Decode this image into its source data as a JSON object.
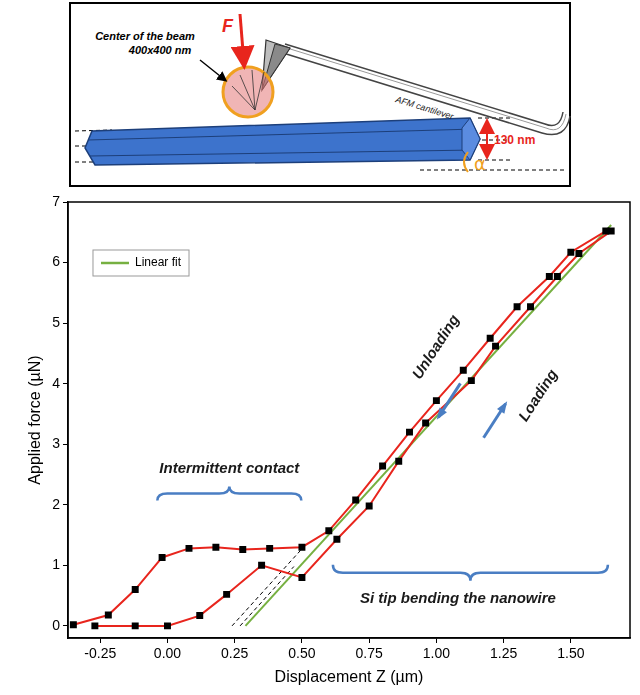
{
  "chart_data": {
    "type": "scatter",
    "x_label": "Displacement Z (µm)",
    "y_label": "Applied force (µN)",
    "xlim": [
      -0.37,
      1.72
    ],
    "xticks": [
      -0.25,
      {
        "value": 0,
        "label": "0.00"
      },
      0.25,
      {
        "value": 0.5,
        "label": "0.50"
      },
      0.75,
      {
        "value": 1,
        "label": "1.00"
      },
      1.25,
      {
        "value": 1.5,
        "label": "1.50"
      }
    ],
    "ylim": [
      -0.2,
      7
    ],
    "yticks": [
      0,
      1,
      2,
      3,
      4,
      5,
      6,
      7
    ],
    "grid": false,
    "legend": "upper left",
    "series": [
      {
        "color": "#e8251d",
        "marker": "square",
        "line_style": "solid",
        "x": [
          -0.35,
          -0.22,
          -0.12,
          -0.02,
          0.08,
          0.18,
          0.28,
          0.38,
          0.5,
          0.6,
          0.7,
          0.8,
          0.9,
          1.0,
          1.1,
          1.2,
          1.3,
          1.42,
          1.5,
          1.63
        ],
        "values": [
          0.02,
          0.18,
          0.6,
          1.13,
          1.28,
          1.3,
          1.26,
          1.28,
          1.3,
          1.57,
          2.08,
          2.64,
          3.2,
          3.72,
          4.22,
          4.75,
          5.27,
          5.77,
          6.17,
          6.52
        ]
      },
      {
        "color": "#e8251d",
        "marker": "square",
        "line_style": "solid",
        "x": [
          -0.27,
          -0.12,
          0.0,
          0.12,
          0.22,
          0.35,
          0.5,
          0.63,
          0.75,
          0.86,
          0.96,
          1.13,
          1.22,
          1.35,
          1.45,
          1.53,
          1.65
        ],
        "values": [
          0.0,
          0.0,
          0.0,
          0.17,
          0.52,
          1.0,
          0.8,
          1.43,
          1.98,
          2.72,
          3.35,
          4.05,
          4.62,
          5.27,
          5.77,
          6.15,
          6.52
        ]
      },
      {
        "name": "Linear fit",
        "color": "#76b041",
        "marker": "none",
        "line_style": "solid",
        "x": [
          0.29,
          1.65
        ],
        "values": [
          0,
          6.62
        ]
      },
      {
        "color": "#000000",
        "marker": "none",
        "line_style": "dashed",
        "x": [
          0.24,
          0.52
        ],
        "values": [
          0,
          1.37
        ]
      },
      {
        "color": "#000000",
        "marker": "none",
        "line_style": "dashed",
        "x": [
          0.27,
          0.47
        ],
        "values": [
          0,
          0.98
        ]
      }
    ],
    "annotations": [
      {
        "text": "Intermittent contact",
        "x": 0.23,
        "y": 2.6
      },
      {
        "text": "Si tip bending the nanowire",
        "x": 1.08,
        "y": 0.45
      },
      {
        "text": "Unloading",
        "x": 1.0,
        "y": 4.6
      },
      {
        "text": "Loading",
        "x": 1.38,
        "y": 3.8
      }
    ]
  },
  "schematic": {
    "force": "F",
    "beam_label": [
      "Center of the beam",
      "400x400 nm"
    ],
    "diameter": "130 nm",
    "cantilever": "AFM cantilever",
    "angle": "α"
  }
}
